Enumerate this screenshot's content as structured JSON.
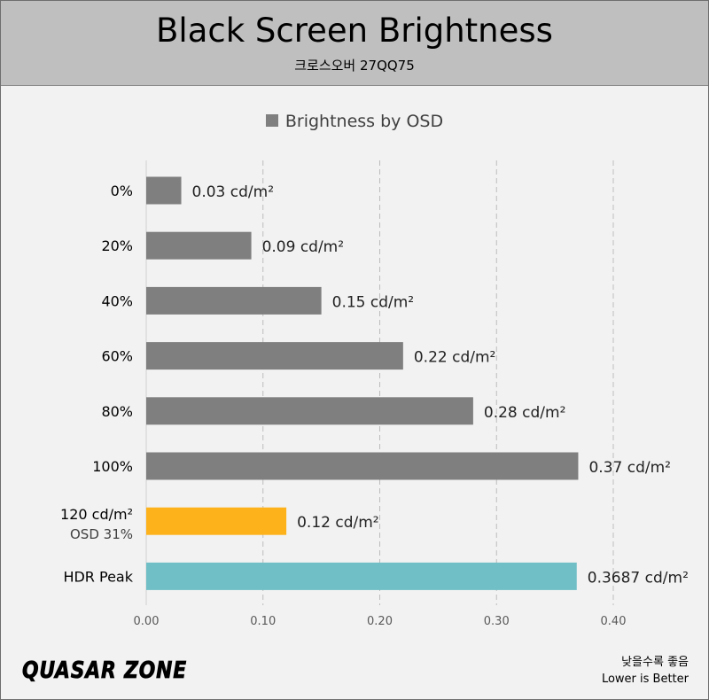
{
  "header": {
    "title": "Black Screen Brightness",
    "subtitle": "크로스오버 27QQ75"
  },
  "chart_data": {
    "type": "bar",
    "orientation": "horizontal",
    "legend": {
      "label": "Brightness by OSD",
      "placement": "top-center"
    },
    "categories": [
      {
        "label": "0%",
        "sublabel": ""
      },
      {
        "label": "20%",
        "sublabel": ""
      },
      {
        "label": "40%",
        "sublabel": ""
      },
      {
        "label": "60%",
        "sublabel": ""
      },
      {
        "label": "80%",
        "sublabel": ""
      },
      {
        "label": "100%",
        "sublabel": ""
      },
      {
        "label": "120 cd/m²",
        "sublabel": "OSD 31%"
      },
      {
        "label": "HDR Peak",
        "sublabel": ""
      }
    ],
    "values": [
      0.03,
      0.09,
      0.15,
      0.22,
      0.28,
      0.37,
      0.12,
      0.3687
    ],
    "value_labels": [
      "0.03 cd/m²",
      "0.09 cd/m²",
      "0.15 cd/m²",
      "0.22 cd/m²",
      "0.28 cd/m²",
      "0.37 cd/m²",
      "0.12 cd/m²",
      "0.3687 cd/m²"
    ],
    "bar_colors": [
      "#7f7f7f",
      "#7f7f7f",
      "#7f7f7f",
      "#7f7f7f",
      "#7f7f7f",
      "#7f7f7f",
      "#fdb21c",
      "#70bfc6"
    ],
    "xlim": [
      0,
      0.4
    ],
    "x_ticks": [
      0,
      0.1,
      0.2,
      0.3,
      0.4
    ],
    "x_tick_labels": [
      "0.00",
      "0.10",
      "0.20",
      "0.30",
      "0.40"
    ],
    "grid": "vertical dashed",
    "xlabel": "",
    "ylabel": ""
  },
  "footer": {
    "logo_text": "QUASAR ZONE",
    "note_line1": "낮을수록 좋음",
    "note_line2": "Lower is Better"
  }
}
